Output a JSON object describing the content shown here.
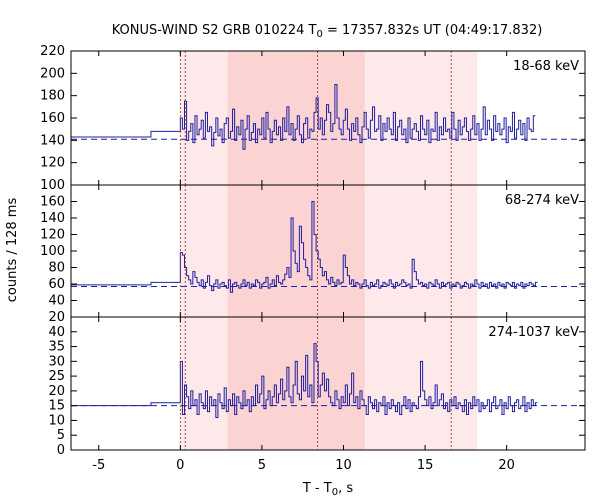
{
  "chart_data": {
    "type": "line",
    "title": {
      "prefix": "KONUS-WIND S2 GRB 010224 T",
      "sub": "0",
      "suffix": " = 17357.832s UT (04:49:17.832)"
    },
    "xlabel": {
      "main": "T - T",
      "sub": "0",
      "suffix": ", s"
    },
    "ylabel": "counts / 128 ms",
    "xlim": [
      -6.7,
      24.8
    ],
    "xticks": [
      -5,
      0,
      5,
      10,
      15,
      20
    ],
    "shaded_regions": [
      {
        "x0": 0.0,
        "x1": 18.2,
        "color": "#fde9e9"
      },
      {
        "x0": 2.9,
        "x1": 11.3,
        "color": "#fbd3d3"
      }
    ],
    "vlines": [
      0.0,
      0.3,
      8.4,
      16.6
    ],
    "line_color": "#1f1f9f",
    "background_step": {
      "x": [
        -6.7,
        -1.8,
        -1.8,
        0.0
      ]
    },
    "bin_width_s": 0.128,
    "panels": [
      {
        "label": "18-68 keV",
        "ylim": [
          100,
          220
        ],
        "yticks": [
          100,
          120,
          140,
          160,
          180,
          200,
          220
        ],
        "background_level": 141,
        "pre_levels": [
          143,
          148
        ],
        "values": [
          160,
          150,
          175,
          140,
          148,
          155,
          138,
          162,
          145,
          150,
          158,
          142,
          165,
          148,
          152,
          135,
          147,
          160,
          144,
          150,
          138,
          155,
          160,
          142,
          148,
          168,
          140,
          152,
          145,
          158,
          132,
          150,
          162,
          140,
          147,
          155,
          138,
          150,
          145,
          160,
          142,
          165,
          150,
          138,
          148,
          158,
          145,
          152,
          140,
          160,
          148,
          170,
          145,
          155,
          140,
          150,
          162,
          145,
          138,
          155,
          160,
          142,
          150,
          148,
          165,
          178,
          150,
          160,
          145,
          158,
          172,
          165,
          148,
          155,
          190,
          160,
          150,
          145,
          158,
          168,
          150,
          140,
          155,
          148,
          160,
          145,
          138,
          152,
          165,
          150,
          142,
          158,
          170,
          148,
          150,
          162,
          140,
          155,
          148,
          160,
          150,
          145,
          165,
          140,
          152,
          158,
          145,
          150,
          138,
          160,
          142,
          150,
          155,
          148,
          140,
          162,
          150,
          145,
          158,
          138,
          150,
          148,
          165,
          140,
          152,
          145,
          160,
          148,
          150,
          142,
          165,
          150,
          140,
          158,
          145,
          152,
          160,
          148,
          140,
          150,
          162,
          145,
          155,
          140,
          150,
          170,
          145,
          158,
          150,
          140,
          162,
          148,
          155,
          145,
          150,
          160,
          138,
          152,
          148,
          165,
          142,
          150,
          158,
          145,
          155,
          140,
          160,
          150,
          148,
          162
        ]
      },
      {
        "label": "68-274 keV",
        "ylim": [
          20,
          180
        ],
        "yticks": [
          20,
          40,
          60,
          80,
          100,
          120,
          140,
          160
        ],
        "background_level": 57,
        "pre_levels": [
          59,
          62
        ],
        "values": [
          98,
          95,
          80,
          70,
          65,
          60,
          75,
          68,
          62,
          58,
          65,
          55,
          62,
          70,
          58,
          52,
          60,
          65,
          55,
          60,
          62,
          58,
          55,
          65,
          50,
          60,
          62,
          58,
          55,
          60,
          65,
          58,
          62,
          55,
          60,
          58,
          65,
          62,
          55,
          60,
          62,
          68,
          55,
          60,
          65,
          58,
          70,
          62,
          60,
          65,
          72,
          80,
          68,
          140,
          100,
          85,
          75,
          130,
          110,
          90,
          80,
          70,
          65,
          160,
          120,
          100,
          90,
          80,
          70,
          75,
          65,
          60,
          68,
          62,
          58,
          65,
          60,
          62,
          95,
          80,
          70,
          60,
          65,
          58,
          62,
          60,
          55,
          60,
          65,
          58,
          55,
          62,
          58,
          60,
          65,
          55,
          58,
          62,
          60,
          58,
          65,
          60,
          55,
          62,
          58,
          60,
          65,
          62,
          58,
          60,
          55,
          90,
          75,
          65,
          60,
          62,
          58,
          60,
          55,
          62,
          60,
          58,
          65,
          60,
          55,
          62,
          58,
          60,
          62,
          55,
          60,
          58,
          62,
          60,
          55,
          58,
          62,
          60,
          55,
          60,
          58,
          65,
          60,
          55,
          62,
          58,
          60,
          55,
          62,
          58,
          60,
          55,
          62,
          58,
          60,
          55,
          62,
          60,
          58,
          62,
          55,
          60,
          58,
          62,
          55,
          60,
          58,
          62,
          60,
          58,
          62
        ]
      },
      {
        "label": "274-1037 keV",
        "ylim": [
          0,
          45
        ],
        "yticks": [
          0,
          5,
          10,
          15,
          20,
          25,
          30,
          35,
          40
        ],
        "background_level": 15,
        "pre_levels": [
          15,
          16
        ],
        "values": [
          30,
          12,
          22,
          18,
          14,
          20,
          15,
          17,
          12,
          19,
          16,
          14,
          20,
          13,
          18,
          15,
          17,
          11,
          19,
          16,
          14,
          21,
          13,
          17,
          15,
          19,
          12,
          18,
          16,
          14,
          20,
          15,
          17,
          13,
          18,
          15,
          22,
          16,
          19,
          25,
          14,
          17,
          20,
          15,
          18,
          22,
          16,
          19,
          24,
          17,
          20,
          28,
          18,
          16,
          22,
          30,
          19,
          17,
          25,
          20,
          32,
          18,
          22,
          16,
          36,
          30,
          18,
          22,
          26,
          20,
          24,
          18,
          16,
          15,
          20,
          17,
          14,
          18,
          16,
          22,
          15,
          19,
          26,
          16,
          18,
          14,
          20,
          17,
          15,
          12,
          18,
          16,
          14,
          17,
          13,
          16,
          15,
          18,
          12,
          16,
          14,
          17,
          15,
          13,
          16,
          12,
          15,
          18,
          14,
          17,
          13,
          16,
          15,
          14,
          18,
          30,
          20,
          17,
          15,
          18,
          14,
          16,
          22,
          15,
          17,
          19,
          14,
          16,
          13,
          17,
          15,
          18,
          14,
          16,
          15,
          13,
          17,
          12,
          16,
          14,
          18,
          15,
          17,
          13,
          16,
          14,
          15,
          17,
          13,
          16,
          18,
          14,
          15,
          17,
          12,
          16,
          14,
          18,
          15,
          13,
          16,
          17,
          14,
          15,
          18,
          13,
          16,
          14,
          17,
          15,
          16
        ]
      }
    ]
  }
}
